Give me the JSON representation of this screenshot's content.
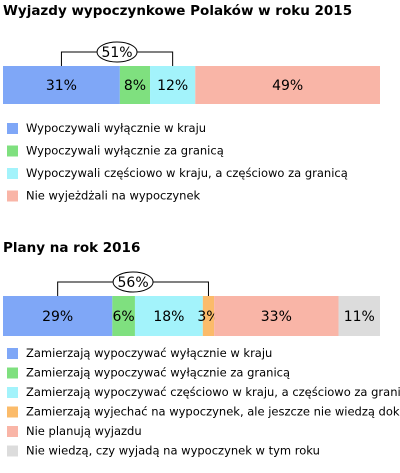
{
  "chart_data": [
    {
      "type": "bar",
      "orientation": "horizontal-stacked",
      "title": "Wyjazdy wypoczynkowe Polaków w roku 2015",
      "unit": "%",
      "xlim": [
        0,
        100
      ],
      "segments": [
        {
          "name": "Wypoczywali wyłącznie w kraju",
          "value": 31,
          "label": "31%",
          "color": "#7fa7f7"
        },
        {
          "name": "Wypoczywali wyłącznie za granicą",
          "value": 8,
          "label": "8%",
          "color": "#7fe07f"
        },
        {
          "name": "Wypoczywali częściowo w kraju, a częściowo za granicą",
          "value": 12,
          "label": "12%",
          "color": "#a3f3fb"
        },
        {
          "name": "Nie wyjeżdżali na wypoczynek",
          "value": 49,
          "label": "49%",
          "color": "#f9b5a7"
        }
      ],
      "bracket": {
        "label": "51%",
        "segments": [
          0,
          2
        ]
      },
      "legend_position": "below"
    },
    {
      "type": "bar",
      "orientation": "horizontal-stacked",
      "title": "Plany na rok 2016",
      "unit": "%",
      "xlim": [
        0,
        100
      ],
      "segments": [
        {
          "name": "Zamierzają wypoczywać wyłącznie w kraju",
          "value": 29,
          "label": "29%",
          "color": "#7fa7f7"
        },
        {
          "name": "Zamierzają wypoczywać wyłącznie za granicą",
          "value": 6,
          "label": "6%",
          "color": "#7fe07f"
        },
        {
          "name": "Zamierzają wypoczywać częściowo w kraju, a częściowo za granicą",
          "value": 18,
          "label": "18%",
          "color": "#a3f3fb"
        },
        {
          "name": "Zamierzają wyjechać na wypoczynek, ale jeszcze nie wiedzą dokąd",
          "value": 3,
          "label": "3%",
          "color": "#fbbb6a"
        },
        {
          "name": "Nie planują wyjazdu",
          "value": 33,
          "label": "33%",
          "color": "#f9b5a7"
        },
        {
          "name": "Nie wiedzą, czy wyjadą na wypoczynek w tym roku",
          "value": 11,
          "label": "11%",
          "color": "#dcdcdc"
        }
      ],
      "bracket": {
        "label": "56%",
        "segments": [
          0,
          3
        ]
      },
      "legend_position": "below"
    }
  ]
}
